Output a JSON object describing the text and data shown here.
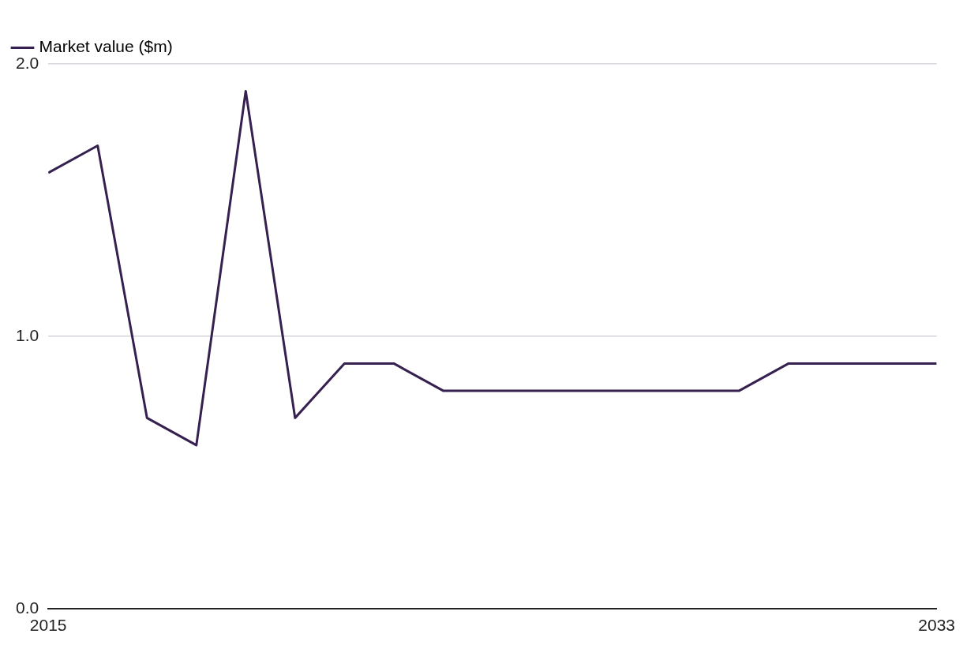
{
  "chart_data": {
    "type": "line",
    "x": [
      2015,
      2016,
      2017,
      2018,
      2019,
      2020,
      2021,
      2022,
      2023,
      2024,
      2025,
      2026,
      2027,
      2028,
      2029,
      2030,
      2031,
      2032,
      2033
    ],
    "series": [
      {
        "name": "Market value ($m)",
        "color": "#35204f",
        "values": [
          1.6,
          1.7,
          0.7,
          0.6,
          1.9,
          0.7,
          0.9,
          0.9,
          0.8,
          0.8,
          0.8,
          0.8,
          0.8,
          0.8,
          0.8,
          0.9,
          0.9,
          0.9,
          0.9
        ]
      }
    ],
    "xlim": [
      2015,
      2033
    ],
    "xticks": [
      2015,
      2033
    ],
    "ylim": [
      0,
      2
    ],
    "yticks": [
      {
        "value": 0,
        "label": "0.0"
      },
      {
        "value": 1,
        "label": "1.0"
      },
      {
        "value": 2,
        "label": "2.0"
      }
    ],
    "grid": "y",
    "legend": "top left",
    "marker": "none",
    "line_style": "solid"
  }
}
